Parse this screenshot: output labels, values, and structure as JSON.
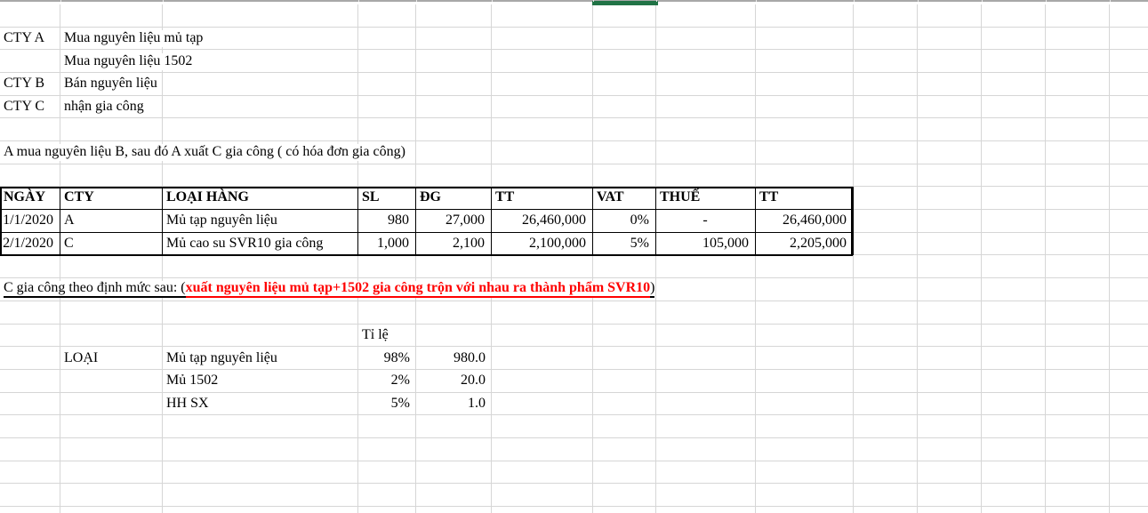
{
  "company_notes": [
    {
      "label": "CTY A",
      "desc": "Mua nguyên liệu mủ tạp"
    },
    {
      "label": "",
      "desc": "Mua nguyên liệu 1502"
    },
    {
      "label": "CTY B",
      "desc": "Bán nguyên liệu"
    },
    {
      "label": "CTY C",
      "desc": "nhận gia công"
    }
  ],
  "summary_note": "A mua nguyên liệu B, sau đó A xuất C gia công ( có hóa đơn gia công)",
  "transactions_table": {
    "headers": [
      "NGÀY",
      "CTY",
      "LOẠI HÀNG",
      "SL",
      "ĐG",
      "TT",
      "VAT",
      "THUẾ",
      "TT"
    ],
    "rows": [
      [
        "1/1/2020",
        "A",
        "Mủ tạp nguyên liệu",
        "980",
        "27,000",
        "26,460,000",
        "0%",
        "-",
        "26,460,000"
      ],
      [
        "2/1/2020",
        "C",
        "Mủ cao su SVR10 gia công",
        "1,000",
        "2,100",
        "2,100,000",
        "5%",
        "105,000",
        "2,205,000"
      ]
    ]
  },
  "process_note": {
    "prefix": "C gia công theo định mức sau: ( ",
    "highlight": "xuất nguyên liệu mủ tạp+1502 gia công trộn với nhau ra thành phẩm SVR10",
    "suffix": ")"
  },
  "ratio_table": {
    "col_header": "Tỉ lệ",
    "row_label": "LOẠI",
    "rows": [
      {
        "name": "Mủ tạp nguyên liệu",
        "pct": "98%",
        "qty": "980.0"
      },
      {
        "name": "Mủ 1502",
        "pct": "2%",
        "qty": "20.0"
      },
      {
        "name": "HH SX",
        "pct": "5%",
        "qty": "1.0"
      }
    ]
  },
  "colors": {
    "gridline": "#d6d6d6",
    "header_strip": "#a8a8a8",
    "selection_green": "#217346",
    "highlight_red": "#ff0000",
    "table_border": "#000000"
  }
}
